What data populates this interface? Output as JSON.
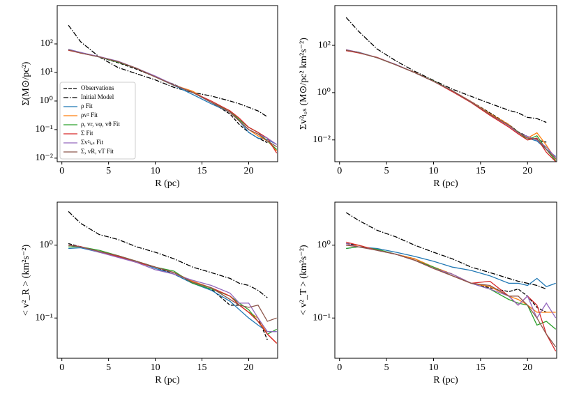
{
  "chart_data": [
    {
      "type": "line",
      "yscale": "log",
      "xlabel": "R (pc)",
      "ylabel": "Σ(M⊙/pc²)",
      "legend": "lower left",
      "xlim": [
        -0.5,
        23.1
      ],
      "xticks": [
        0,
        5,
        10,
        15,
        20
      ],
      "ylim": [
        0.0075,
        2200
      ],
      "yticks": [
        {
          "value": 0.01,
          "label": "10⁻²"
        },
        {
          "value": 0.1,
          "label": "10⁻¹"
        },
        {
          "value": 1,
          "label": "10⁰"
        },
        {
          "value": 10,
          "label": "10¹"
        },
        {
          "value": 100,
          "label": "10²"
        }
      ],
      "x": [
        0.7,
        2,
        4,
        6,
        8,
        10,
        12,
        14,
        16,
        18,
        19,
        20,
        21,
        22,
        23
      ],
      "series": [
        {
          "name": "Observations",
          "color": "#000000",
          "style": "dashed",
          "values": [
            60,
            50,
            35,
            22,
            13,
            7,
            3.8,
            2.0,
            0.9,
            0.35,
            0.15,
            0.08,
            0.05,
            0.035,
            null
          ]
        },
        {
          "name": "Initial Model",
          "color": "#000000",
          "style": "dashdot",
          "values": [
            450,
            120,
            35,
            15,
            9,
            5.5,
            3,
            2,
            1.5,
            1.0,
            0.8,
            0.6,
            0.45,
            0.28,
            null
          ]
        },
        {
          "name": "ρ Fit",
          "color": "#1f77b4",
          "style": "solid",
          "values": [
            65,
            50,
            35,
            24,
            14,
            7,
            3.5,
            1.7,
            0.8,
            0.4,
            0.2,
            0.08,
            0.05,
            0.045,
            0.03
          ]
        },
        {
          "name": "ρv² Fit",
          "color": "#ff7f0e",
          "style": "solid",
          "values": [
            62,
            48,
            36,
            24,
            14,
            7,
            3.6,
            2.2,
            0.9,
            0.4,
            0.2,
            0.1,
            0.06,
            0.04,
            0.018
          ]
        },
        {
          "name": "ρ, vr, vφ, vθ Fit",
          "color": "#2ca02c",
          "style": "solid",
          "values": [
            63,
            49,
            35,
            23,
            14,
            7,
            3.6,
            2.0,
            0.9,
            0.45,
            0.22,
            0.12,
            0.08,
            0.04,
            0.02
          ]
        },
        {
          "name": "Σ Fit",
          "color": "#d62728",
          "style": "solid",
          "values": [
            60,
            48,
            36,
            24,
            14,
            7,
            3.6,
            2.0,
            1.0,
            0.45,
            0.25,
            0.12,
            0.08,
            0.05,
            0.015
          ]
        },
        {
          "name": "Σv²ₗₒₛ Fit",
          "color": "#9467bd",
          "style": "solid",
          "values": [
            64,
            50,
            36,
            25,
            14,
            7.5,
            3.7,
            2.0,
            0.9,
            0.4,
            0.2,
            0.1,
            0.07,
            0.05,
            0.03
          ]
        },
        {
          "name": "Σ, vR, vT Fit",
          "color": "#8c564b",
          "style": "solid",
          "values": [
            62,
            48,
            35,
            24,
            14,
            7,
            3.6,
            2.0,
            0.9,
            0.4,
            0.2,
            0.1,
            0.07,
            0.04,
            0.025
          ]
        }
      ]
    },
    {
      "type": "line",
      "yscale": "log",
      "xlabel": "R (pc)",
      "ylabel": "Σv²ₗₒₛ (M⊙/pc² km²s⁻²)",
      "xlim": [
        -0.5,
        23.1
      ],
      "xticks": [
        0,
        5,
        10,
        15,
        20
      ],
      "ylim": [
        0.0012,
        4800
      ],
      "yticks": [
        {
          "value": 0.01,
          "label": "10⁻²"
        },
        {
          "value": 1,
          "label": "10⁰"
        },
        {
          "value": 100,
          "label": "10²"
        }
      ],
      "x": [
        0.7,
        2,
        4,
        6,
        8,
        10,
        12,
        14,
        16,
        18,
        19,
        20,
        21,
        22,
        23
      ],
      "series": [
        {
          "color": "#000000",
          "style": "dashed",
          "values": [
            60,
            50,
            30,
            15,
            7,
            3,
            1.2,
            0.42,
            0.14,
            0.045,
            0.022,
            0.014,
            0.01,
            0.008,
            null
          ]
        },
        {
          "color": "#000000",
          "style": "dashdot",
          "values": [
            1500,
            400,
            70,
            22,
            8,
            3.3,
            1.4,
            0.7,
            0.35,
            0.18,
            0.14,
            0.09,
            0.08,
            0.055,
            null
          ]
        },
        {
          "color": "#1f77b4",
          "style": "solid",
          "values": [
            62,
            52,
            30,
            15,
            7,
            3,
            1.2,
            0.4,
            0.12,
            0.04,
            0.02,
            0.012,
            0.009,
            0.004,
            0.002
          ]
        },
        {
          "color": "#ff7f0e",
          "style": "solid",
          "values": [
            65,
            50,
            30,
            15,
            7.2,
            3,
            1.2,
            0.42,
            0.13,
            0.045,
            0.02,
            0.012,
            0.02,
            0.006,
            0.0015
          ]
        },
        {
          "color": "#2ca02c",
          "style": "solid",
          "values": [
            64,
            50,
            30,
            15,
            7,
            3.1,
            1.2,
            0.4,
            0.12,
            0.04,
            0.022,
            0.01,
            0.015,
            0.004,
            0.0013
          ]
        },
        {
          "color": "#d62728",
          "style": "solid",
          "values": [
            60,
            48,
            31,
            15,
            7,
            3,
            1.1,
            0.38,
            0.11,
            0.035,
            0.018,
            0.01,
            0.012,
            0.003,
            0.0012
          ]
        },
        {
          "color": "#9467bd",
          "style": "solid",
          "values": [
            66,
            51,
            30,
            15.5,
            7,
            3,
            1.2,
            0.41,
            0.12,
            0.04,
            0.02,
            0.014,
            0.01,
            0.005,
            0.0018
          ]
        },
        {
          "color": "#8c564b",
          "style": "solid",
          "values": [
            63,
            50,
            30,
            15,
            7,
            3,
            1.2,
            0.4,
            0.12,
            0.042,
            0.021,
            0.012,
            0.011,
            0.004,
            0.0016
          ]
        }
      ]
    },
    {
      "type": "line",
      "yscale": "log",
      "xlabel": "R (pc)",
      "ylabel": "< v²_R >  (km²s⁻²)",
      "xlim": [
        -0.5,
        23.1
      ],
      "xticks": [
        0,
        5,
        10,
        15,
        20
      ],
      "ylim": [
        0.028,
        3.9
      ],
      "yticks": [
        {
          "value": 0.1,
          "label": "10⁻¹"
        },
        {
          "value": 1,
          "label": "10⁰"
        }
      ],
      "x": [
        0.7,
        2,
        4,
        6,
        8,
        10,
        12,
        14,
        16,
        18,
        19,
        20,
        21,
        22,
        23
      ],
      "series": [
        {
          "color": "#000000",
          "style": "dashed",
          "values": [
            1.05,
            0.95,
            0.8,
            0.7,
            0.6,
            0.5,
            0.4,
            0.3,
            0.25,
            0.15,
            0.15,
            0.12,
            0.1,
            0.05,
            null
          ]
        },
        {
          "color": "#000000",
          "style": "dashdot",
          "values": [
            2.9,
            2.0,
            1.4,
            1.2,
            0.95,
            0.8,
            0.65,
            0.5,
            0.42,
            0.35,
            0.3,
            0.28,
            0.24,
            0.19,
            null
          ]
        },
        {
          "color": "#1f77b4",
          "style": "solid",
          "values": [
            0.9,
            0.92,
            0.8,
            0.7,
            0.6,
            0.48,
            0.4,
            0.3,
            0.24,
            0.17,
            0.13,
            0.1,
            0.08,
            0.065,
            0.065
          ]
        },
        {
          "color": "#ff7f0e",
          "style": "solid",
          "values": [
            1.0,
            0.95,
            0.82,
            0.72,
            0.6,
            0.5,
            0.42,
            0.32,
            0.26,
            0.2,
            0.15,
            0.12,
            0.1,
            0.06,
            0.045
          ]
        },
        {
          "color": "#2ca02c",
          "style": "solid",
          "values": [
            0.95,
            0.95,
            0.85,
            0.72,
            0.6,
            0.5,
            0.44,
            0.3,
            0.25,
            0.2,
            0.16,
            0.13,
            0.09,
            0.06,
            0.07
          ]
        },
        {
          "color": "#d62728",
          "style": "solid",
          "values": [
            1.0,
            0.96,
            0.8,
            0.7,
            0.58,
            0.5,
            0.42,
            0.31,
            0.26,
            0.2,
            0.15,
            0.12,
            0.09,
            0.06,
            0.045
          ]
        },
        {
          "color": "#9467bd",
          "style": "solid",
          "values": [
            1.0,
            0.95,
            0.8,
            0.68,
            0.58,
            0.46,
            0.4,
            0.33,
            0.28,
            0.22,
            0.16,
            0.16,
            0.1,
            0.065,
            0.065
          ]
        },
        {
          "color": "#8c564b",
          "style": "solid",
          "values": [
            1.0,
            0.95,
            0.82,
            0.72,
            0.6,
            0.5,
            0.42,
            0.31,
            0.26,
            0.18,
            0.15,
            0.14,
            0.15,
            0.09,
            0.1
          ]
        }
      ]
    },
    {
      "type": "line",
      "yscale": "log",
      "xlabel": "R (pc)",
      "ylabel": "< v²_T >  (km²s⁻²)",
      "xlim": [
        -0.5,
        23.1
      ],
      "xticks": [
        0,
        5,
        10,
        15,
        20
      ],
      "ylim": [
        0.028,
        3.9
      ],
      "yticks": [
        {
          "value": 0.1,
          "label": "10⁻¹"
        },
        {
          "value": 1,
          "label": "10⁰"
        }
      ],
      "x": [
        0.7,
        2,
        4,
        6,
        8,
        10,
        12,
        14,
        16,
        18,
        19,
        20,
        21,
        22,
        23
      ],
      "series": [
        {
          "color": "#000000",
          "style": "dashed",
          "values": [
            1.05,
            1.0,
            0.85,
            0.75,
            0.65,
            0.5,
            0.4,
            0.3,
            0.26,
            0.23,
            0.25,
            0.2,
            0.14,
            0.12,
            null
          ]
        },
        {
          "color": "#000000",
          "style": "dashdot",
          "values": [
            2.8,
            2.2,
            1.6,
            1.3,
            1.0,
            0.8,
            0.65,
            0.5,
            0.42,
            0.35,
            0.32,
            0.3,
            0.28,
            0.25,
            null
          ]
        },
        {
          "color": "#1f77b4",
          "style": "solid",
          "values": [
            0.9,
            0.95,
            0.9,
            0.8,
            0.7,
            0.6,
            0.5,
            0.45,
            0.38,
            0.3,
            0.3,
            0.28,
            0.35,
            0.27,
            0.3
          ]
        },
        {
          "color": "#ff7f0e",
          "style": "solid",
          "values": [
            1.0,
            1.0,
            0.85,
            0.75,
            0.65,
            0.5,
            0.4,
            0.3,
            0.27,
            0.2,
            0.18,
            0.15,
            0.12,
            0.12,
            0.12
          ]
        },
        {
          "color": "#2ca02c",
          "style": "solid",
          "values": [
            0.9,
            0.95,
            0.88,
            0.75,
            0.62,
            0.5,
            0.38,
            0.3,
            0.25,
            0.18,
            0.16,
            0.15,
            0.08,
            0.09,
            0.07
          ]
        },
        {
          "color": "#d62728",
          "style": "solid",
          "values": [
            1.1,
            1.0,
            0.85,
            0.75,
            0.62,
            0.48,
            0.38,
            0.3,
            0.32,
            0.2,
            0.15,
            0.2,
            0.15,
            0.06,
            0.035
          ]
        },
        {
          "color": "#9467bd",
          "style": "solid",
          "values": [
            1.05,
            0.95,
            0.85,
            0.75,
            0.62,
            0.48,
            0.4,
            0.3,
            0.25,
            0.2,
            0.15,
            0.2,
            0.1,
            0.16,
            0.1
          ]
        },
        {
          "color": "#8c564b",
          "style": "solid",
          "values": [
            1.0,
            0.95,
            0.85,
            0.75,
            0.62,
            0.48,
            0.38,
            0.3,
            0.28,
            0.2,
            0.2,
            0.15,
            0.1,
            0.06,
            0.04
          ]
        }
      ]
    }
  ]
}
